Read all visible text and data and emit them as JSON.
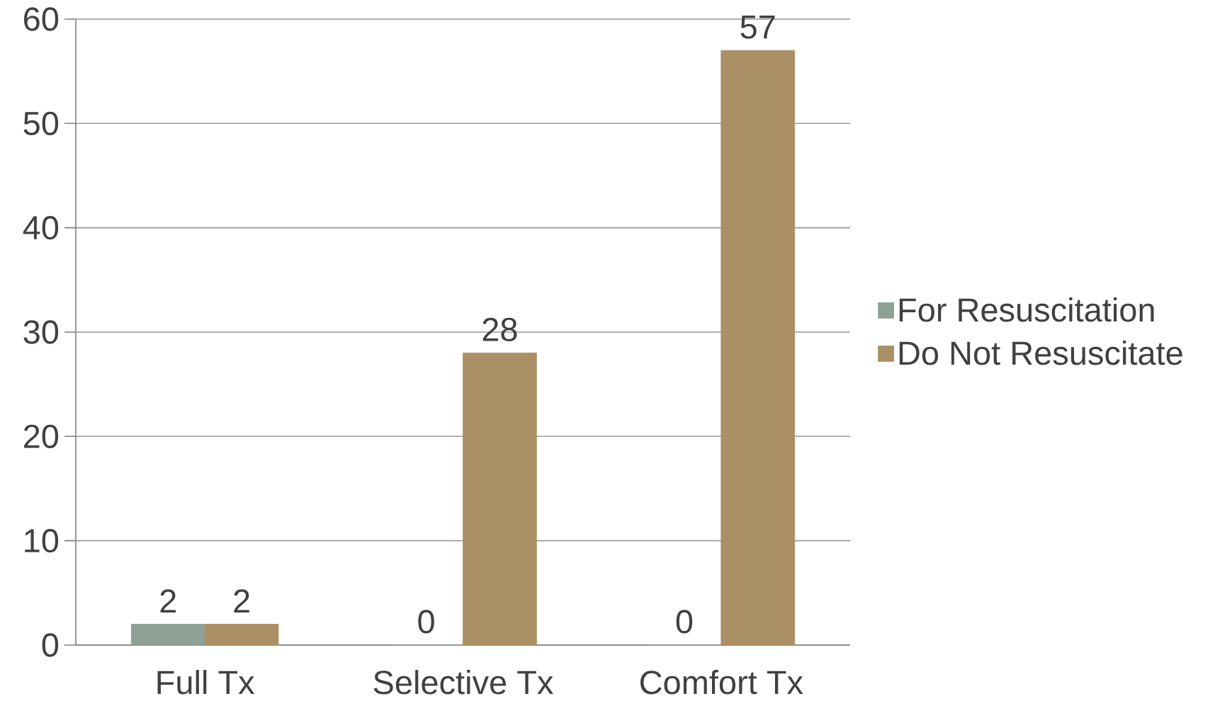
{
  "chart_data": {
    "type": "bar",
    "categories": [
      "Full Tx",
      "Selective Tx",
      "Comfort Tx"
    ],
    "series": [
      {
        "name": "For Resuscitation",
        "color": "#8fa197",
        "values": [
          2,
          0,
          0
        ]
      },
      {
        "name": "Do Not Resuscitate",
        "color": "#ab8f65",
        "values": [
          2,
          28,
          57
        ]
      }
    ],
    "ylim": [
      0,
      60
    ],
    "yticks": [
      0,
      10,
      20,
      30,
      40,
      50,
      60
    ],
    "grid": "y",
    "legend": "right",
    "data_labels": true
  }
}
